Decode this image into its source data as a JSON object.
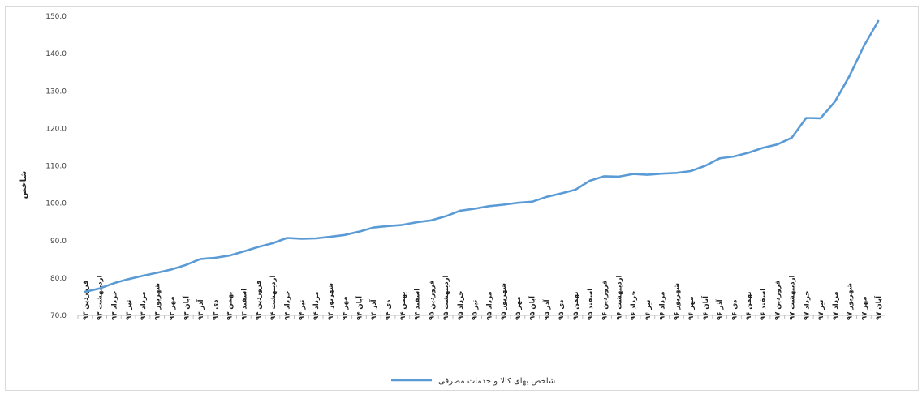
{
  "chart_data": {
    "type": "line",
    "title": "",
    "xlabel": "",
    "ylabel": "شاخص",
    "ylim": [
      70,
      150
    ],
    "yticks": [
      "70.0",
      "80.0",
      "90.0",
      "100.0",
      "110.0",
      "120.0",
      "130.0",
      "140.0",
      "150.0"
    ],
    "grid": false,
    "legend_position": "bottom",
    "line_color": "#5b9bd5",
    "categories": [
      "فروردین ۹۳",
      "اردیبهشت ۹۳",
      "خرداد ۹۳",
      "تیر ۹۳",
      "مرداد ۹۳",
      "شهریور ۹۳",
      "مهر ۹۳",
      "آبان ۹۳",
      "آذر ۹۳",
      "دی ۹۳",
      "بهمن ۹۳",
      "اسفند ۹۳",
      "فروردین ۹۴",
      "اردیبهشت ۹۴",
      "خرداد ۹۴",
      "تیر ۹۴",
      "مرداد ۹۴",
      "شهریور ۹۴",
      "مهر ۹۴",
      "آبان ۹۴",
      "آذر ۹۴",
      "دی ۹۴",
      "بهمن ۹۴",
      "اسفند ۹۴",
      "فروردین ۹۵",
      "اردیبهشت ۹۵",
      "خرداد ۹۵",
      "تیر ۹۵",
      "مرداد ۹۵",
      "شهریور ۹۵",
      "مهر ۹۵",
      "آبان ۹۵",
      "آذر ۹۵",
      "دی ۹۵",
      "بهمن ۹۵",
      "اسفند ۹۵",
      "فروردین ۹۶",
      "اردیبهشت ۹۶",
      "خرداد ۹۶",
      "تیر ۹۶",
      "مرداد ۹۶",
      "شهریور ۹۶",
      "مهر ۹۶",
      "آبان ۹۶",
      "آذر ۹۶",
      "دی ۹۶",
      "بهمن ۹۶",
      "اسفند ۹۶",
      "فروردین ۹۷",
      "اردیبهشت ۹۷",
      "خرداد ۹۷",
      "تیر ۹۷",
      "مرداد ۹۷",
      "شهریور ۹۷",
      "مهر ۹۷",
      "آبان ۹۷"
    ],
    "series": [
      {
        "name": "شاخص بهای کالا و خدمات مصرفی",
        "values": [
          76.3,
          77.2,
          78.6,
          79.7,
          80.6,
          81.4,
          82.3,
          83.5,
          85.1,
          85.4,
          86.0,
          87.1,
          88.3,
          89.3,
          90.7,
          90.5,
          90.6,
          91.0,
          91.5,
          92.4,
          93.5,
          93.9,
          94.2,
          94.9,
          95.4,
          96.5,
          98.0,
          98.5,
          99.2,
          99.6,
          100.1,
          100.4,
          101.7,
          102.6,
          103.6,
          106.0,
          107.2,
          107.1,
          107.8,
          107.6,
          107.9,
          108.1,
          108.6,
          110.0,
          112.0,
          112.5,
          113.5,
          114.8,
          115.7,
          117.5,
          122.8,
          122.7,
          127.2,
          134.0,
          142.0,
          148.7
        ]
      }
    ]
  }
}
